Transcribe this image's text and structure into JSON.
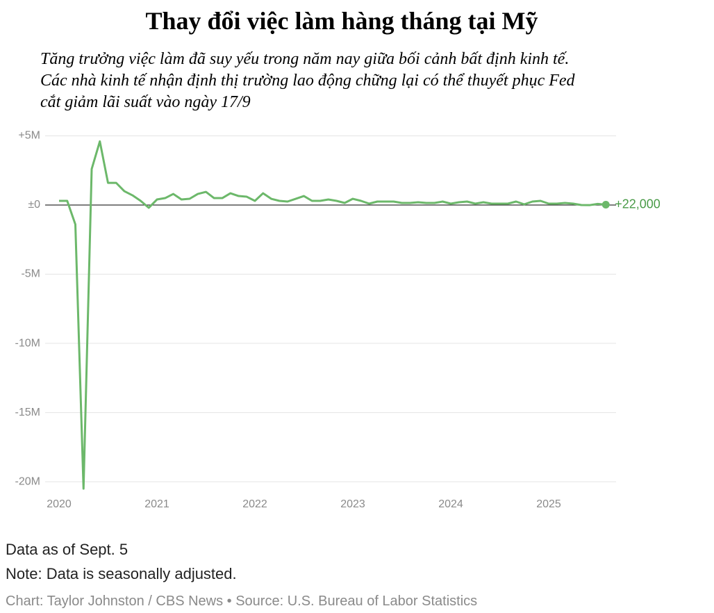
{
  "chart_data": {
    "type": "line",
    "title": "Thay đổi việc làm hàng tháng tại Mỹ",
    "subtitle": [
      "Tăng trưởng việc làm đã suy yếu trong năm nay giữa bối cảnh bất định kinh tế.",
      "Các nhà kinh tế nhận định thị trường lao động chững lại có thể thuyết phục Fed",
      "cắt giảm lãi suất vào ngày 17/9"
    ],
    "categories": [
      "2020",
      null,
      null,
      null,
      null,
      null,
      null,
      null,
      null,
      null,
      null,
      null,
      "2021",
      null,
      null,
      null,
      null,
      null,
      null,
      null,
      null,
      null,
      null,
      null,
      "2022",
      null,
      null,
      null,
      null,
      null,
      null,
      null,
      null,
      null,
      null,
      null,
      "2023",
      null,
      null,
      null,
      null,
      null,
      null,
      null,
      null,
      null,
      null,
      null,
      "2024",
      null,
      null,
      null,
      null,
      null,
      null,
      null,
      null,
      null,
      null,
      null,
      "2025",
      null,
      null,
      null,
      null,
      null,
      null,
      null
    ],
    "values": [
      0.3,
      0.3,
      -1.4,
      -20.5,
      2.6,
      4.6,
      1.6,
      1.6,
      1.0,
      0.7,
      0.3,
      -0.2,
      0.4,
      0.5,
      0.8,
      0.4,
      0.45,
      0.8,
      0.95,
      0.5,
      0.5,
      0.85,
      0.65,
      0.6,
      0.3,
      0.85,
      0.45,
      0.3,
      0.25,
      0.45,
      0.65,
      0.3,
      0.3,
      0.4,
      0.3,
      0.15,
      0.45,
      0.3,
      0.1,
      0.25,
      0.25,
      0.25,
      0.15,
      0.15,
      0.2,
      0.15,
      0.15,
      0.25,
      0.1,
      0.2,
      0.25,
      0.1,
      0.2,
      0.1,
      0.1,
      0.1,
      0.25,
      0.05,
      0.25,
      0.3,
      0.1,
      0.1,
      0.15,
      0.1,
      0.0,
      -0.01,
      0.08,
      0.022
    ],
    "value_labels": [
      null,
      null,
      null,
      null,
      null,
      null,
      null,
      null,
      null,
      null,
      null,
      null,
      null,
      null,
      null,
      null,
      null,
      null,
      null,
      null,
      null,
      null,
      null,
      null,
      null,
      null,
      null,
      null,
      null,
      null,
      null,
      null,
      null,
      null,
      null,
      null,
      null,
      null,
      null,
      null,
      null,
      null,
      null,
      null,
      null,
      null,
      null,
      null,
      null,
      null,
      null,
      null,
      null,
      null,
      null,
      null,
      null,
      null,
      null,
      null,
      null,
      null,
      null,
      null,
      null,
      null,
      null,
      "+22,000"
    ],
    "color": "#6cb86a",
    "ylim": [
      -21,
      5.5
    ],
    "yticks": [
      {
        "value": 5,
        "label": "+5M"
      },
      {
        "value": 0,
        "label": "±0"
      },
      {
        "value": -5,
        "label": "-5M"
      },
      {
        "value": -10,
        "label": "-10M"
      },
      {
        "value": -15,
        "label": "-15M"
      },
      {
        "value": -20,
        "label": "-20M"
      }
    ],
    "grid": true,
    "notes": [
      "Data as of Sept. 5",
      "Note: Data is seasonally adjusted."
    ],
    "source": "Chart: Taylor Johnston / CBS News • Source: U.S. Bureau of Labor Statistics"
  }
}
